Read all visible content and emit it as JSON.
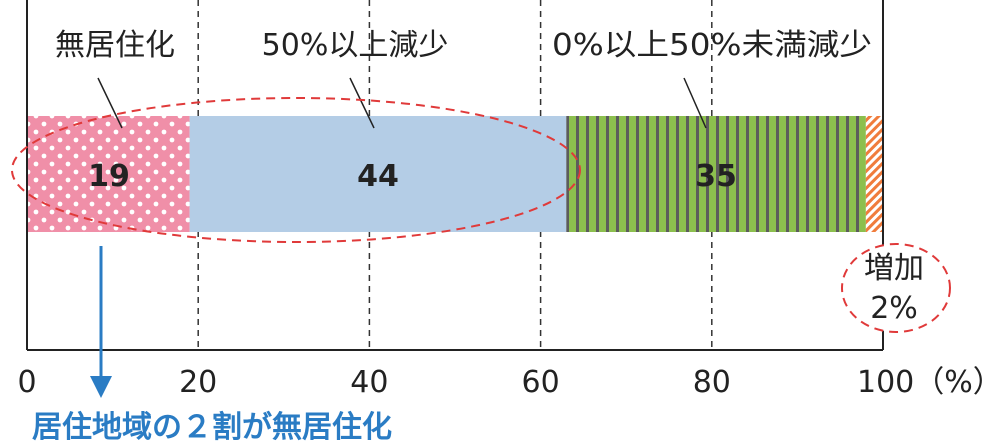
{
  "chart_data": {
    "type": "bar",
    "orientation": "horizontal-stacked",
    "series": [
      {
        "name": "無居住化",
        "value": 19,
        "label": "19"
      },
      {
        "name": "50%以上減少",
        "value": 44,
        "label": "44"
      },
      {
        "name": "0%以上50%未満減少",
        "value": 35,
        "label": "35"
      },
      {
        "name": "増加",
        "value": 2
      }
    ],
    "increase_label": [
      "増加",
      "2%"
    ],
    "xlim": [
      0,
      100
    ],
    "x_ticks": [
      "0",
      "20",
      "40",
      "60",
      "80",
      "100（%）"
    ],
    "grid": "dashed vertical lines at 20, 40, 60, 80",
    "caption": "居住地域の２割が無居住化",
    "colors": {
      "no_residence": "#f08fa8",
      "decrease_50_plus": "#b4cde6",
      "decrease_0_50": "#8cbf4e",
      "increase": "#f07c3c",
      "highlight": "#e03a3a",
      "caption": "#2a7cc4",
      "arrow": "#2a7cc4"
    }
  }
}
